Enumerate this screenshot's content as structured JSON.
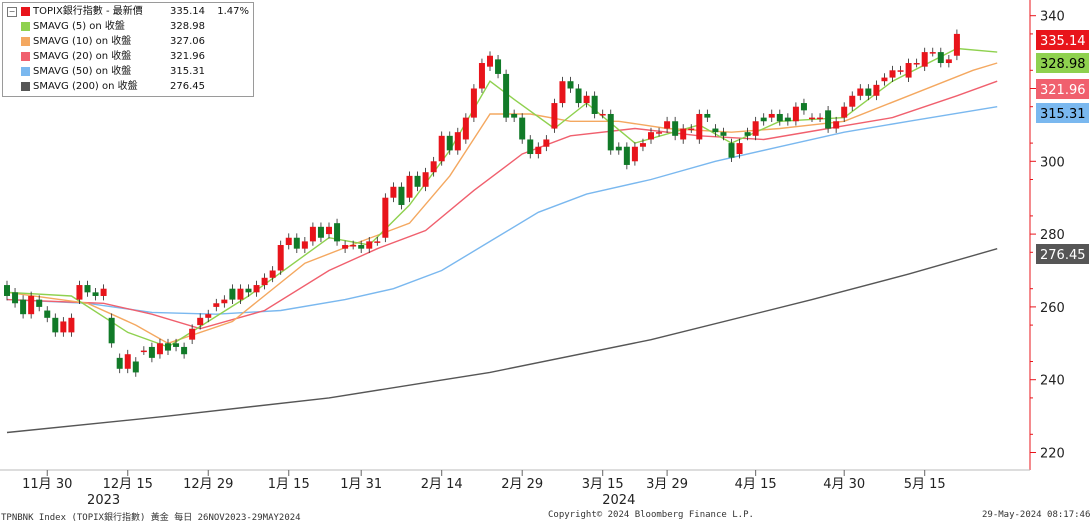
{
  "chart_data": {
    "type": "candlestick",
    "ylim": [
      216,
      346
    ],
    "yticks": [
      220,
      240,
      260,
      280,
      300,
      320,
      340
    ],
    "xticks": [
      {
        "label": "11月 30"
      },
      {
        "label": "12月 15"
      },
      {
        "label": "12月 29"
      },
      {
        "label": "1月 15"
      },
      {
        "label": "1月 31"
      },
      {
        "label": "2月 14"
      },
      {
        "label": "2月 29"
      },
      {
        "label": "3月 15"
      },
      {
        "label": "3月 29"
      },
      {
        "label": "4月 15"
      },
      {
        "label": "4月 30"
      },
      {
        "label": "5月 15"
      }
    ],
    "year_labels": [
      "2023",
      "2024"
    ],
    "candles": [
      [
        266,
        263
      ],
      [
        264,
        261
      ],
      [
        262,
        258
      ],
      [
        258,
        263
      ],
      [
        262,
        260
      ],
      [
        259,
        257
      ],
      [
        257,
        253
      ],
      [
        253,
        256
      ],
      [
        253,
        257
      ],
      [
        262,
        266
      ],
      [
        266,
        264
      ],
      [
        264,
        263
      ],
      [
        263,
        265
      ],
      [
        257,
        250
      ],
      [
        246,
        243
      ],
      [
        243,
        247
      ],
      [
        245,
        242
      ],
      [
        248,
        248
      ],
      [
        249,
        246
      ],
      [
        247,
        250
      ],
      [
        250,
        248
      ],
      [
        250,
        249
      ],
      [
        249,
        247
      ],
      [
        251,
        254
      ],
      [
        255,
        257
      ],
      [
        257,
        258
      ],
      [
        260,
        261
      ],
      [
        261,
        262
      ],
      [
        265,
        262
      ],
      [
        262,
        265
      ],
      [
        265,
        264
      ],
      [
        264,
        266
      ],
      [
        266,
        268
      ],
      [
        268,
        270
      ],
      [
        270,
        277
      ],
      [
        277,
        279
      ],
      [
        279,
        276
      ],
      [
        276,
        278
      ],
      [
        278,
        282
      ],
      [
        282,
        279
      ],
      [
        280,
        282
      ],
      [
        283,
        278
      ],
      [
        276,
        277
      ],
      [
        277,
        277
      ],
      [
        277,
        276
      ],
      [
        276,
        278
      ],
      [
        278,
        278
      ],
      [
        279,
        290
      ],
      [
        290,
        293
      ],
      [
        293,
        288
      ],
      [
        290,
        296
      ],
      [
        296,
        293
      ],
      [
        293,
        297
      ],
      [
        297,
        300
      ],
      [
        300,
        307
      ],
      [
        307,
        303
      ],
      [
        303,
        308
      ],
      [
        306,
        312
      ],
      [
        312,
        320
      ],
      [
        320,
        327
      ],
      [
        326,
        329
      ],
      [
        328,
        324
      ],
      [
        324,
        312
      ],
      [
        313,
        312
      ],
      [
        312,
        306
      ],
      [
        306,
        302
      ],
      [
        302,
        304
      ],
      [
        304,
        306
      ],
      [
        309,
        316
      ],
      [
        316,
        322
      ],
      [
        322,
        320
      ],
      [
        320,
        316
      ],
      [
        316,
        318
      ],
      [
        318,
        313
      ],
      [
        313,
        313
      ],
      [
        313,
        303
      ],
      [
        304,
        303
      ],
      [
        304,
        299
      ],
      [
        300,
        304
      ],
      [
        304,
        305
      ],
      [
        306,
        308
      ],
      [
        308,
        308
      ],
      [
        309,
        311
      ],
      [
        311,
        307
      ],
      [
        306,
        309
      ],
      [
        309,
        309
      ],
      [
        306,
        313
      ],
      [
        313,
        312
      ],
      [
        309,
        308
      ],
      [
        308,
        307
      ],
      [
        305,
        301
      ],
      [
        302,
        305
      ],
      [
        308,
        307
      ],
      [
        307,
        311
      ],
      [
        312,
        311
      ],
      [
        312,
        313
      ],
      [
        313,
        311
      ],
      [
        312,
        311
      ],
      [
        311,
        315
      ],
      [
        316,
        314
      ],
      [
        312,
        312
      ],
      [
        312,
        312
      ],
      [
        314,
        309
      ],
      [
        309,
        311
      ],
      [
        312,
        315
      ],
      [
        315,
        318
      ],
      [
        318,
        320
      ],
      [
        320,
        318
      ],
      [
        318,
        321
      ],
      [
        322,
        323
      ],
      [
        323,
        325
      ],
      [
        325,
        325
      ],
      [
        323,
        327
      ],
      [
        327,
        327
      ],
      [
        326,
        330
      ],
      [
        330,
        330
      ],
      [
        330,
        327
      ],
      [
        327,
        328
      ],
      [
        329,
        335
      ]
    ],
    "series": [
      {
        "name": "TOPIX銀行指數 - 最新價",
        "last": "335.14",
        "change": "1.47%",
        "color": "#e8141b"
      },
      {
        "name": "SMAVG (5)  on 收盤",
        "last": "328.98",
        "color": "#8fd14f",
        "values": [
          [
            0,
            264
          ],
          [
            8,
            263
          ],
          [
            15,
            253
          ],
          [
            20,
            249
          ],
          [
            30,
            263
          ],
          [
            40,
            279
          ],
          [
            45,
            277
          ],
          [
            50,
            288
          ],
          [
            55,
            303
          ],
          [
            60,
            322
          ],
          [
            63,
            317
          ],
          [
            68,
            309
          ],
          [
            72,
            316
          ],
          [
            78,
            305
          ],
          [
            86,
            310
          ],
          [
            90,
            305
          ],
          [
            96,
            311
          ],
          [
            104,
            312
          ],
          [
            110,
            322
          ],
          [
            118,
            331
          ],
          [
            123,
            330
          ]
        ]
      },
      {
        "name": "SMAVG (10)  on 收盤",
        "last": "327.06",
        "color": "#f4a860",
        "values": [
          [
            0,
            264
          ],
          [
            10,
            261
          ],
          [
            16,
            255
          ],
          [
            20,
            250
          ],
          [
            28,
            256
          ],
          [
            37,
            272
          ],
          [
            44,
            278
          ],
          [
            50,
            283
          ],
          [
            55,
            296
          ],
          [
            60,
            313
          ],
          [
            65,
            313
          ],
          [
            70,
            311
          ],
          [
            76,
            311
          ],
          [
            82,
            309
          ],
          [
            90,
            308
          ],
          [
            96,
            309
          ],
          [
            104,
            311
          ],
          [
            112,
            318
          ],
          [
            120,
            325
          ],
          [
            123,
            327
          ]
        ]
      },
      {
        "name": "SMAVG (20)  on 收盤",
        "last": "321.96",
        "color": "#f0606e",
        "values": [
          [
            0,
            262
          ],
          [
            12,
            261
          ],
          [
            18,
            258
          ],
          [
            24,
            254
          ],
          [
            32,
            259
          ],
          [
            40,
            270
          ],
          [
            46,
            276
          ],
          [
            52,
            281
          ],
          [
            58,
            292
          ],
          [
            64,
            302
          ],
          [
            70,
            307
          ],
          [
            78,
            309
          ],
          [
            86,
            307
          ],
          [
            94,
            306
          ],
          [
            102,
            309
          ],
          [
            110,
            312
          ],
          [
            118,
            318
          ],
          [
            123,
            322
          ]
        ]
      },
      {
        "name": "SMAVG (50)  on 收盤",
        "last": "315.31",
        "color": "#7ab8ef",
        "values": [
          [
            0,
            262
          ],
          [
            10,
            261
          ],
          [
            18,
            258.5
          ],
          [
            26,
            258
          ],
          [
            34,
            259
          ],
          [
            42,
            262
          ],
          [
            48,
            265
          ],
          [
            54,
            270
          ],
          [
            60,
            278
          ],
          [
            66,
            286
          ],
          [
            72,
            291
          ],
          [
            80,
            295
          ],
          [
            88,
            300
          ],
          [
            96,
            304
          ],
          [
            104,
            308
          ],
          [
            112,
            311
          ],
          [
            123,
            315
          ]
        ]
      },
      {
        "name": "SMAVG (200)  on 收盤",
        "last": "276.45",
        "color": "#565656",
        "values": [
          [
            0,
            225.5
          ],
          [
            20,
            230
          ],
          [
            40,
            235
          ],
          [
            60,
            242
          ],
          [
            80,
            251
          ],
          [
            100,
            262
          ],
          [
            112,
            269
          ],
          [
            123,
            276
          ]
        ]
      }
    ]
  },
  "price_tags": [
    {
      "value": "335.14",
      "bg": "#e8141b",
      "fg": "#ffffff"
    },
    {
      "value": "328.98",
      "bg": "#8fd14f",
      "fg": "#000000"
    },
    {
      "value": "321.96",
      "bg": "#f0606e",
      "fg": "#ffffff"
    },
    {
      "value": "315.31",
      "bg": "#7ab8ef",
      "fg": "#000000"
    },
    {
      "value": "276.45",
      "bg": "#565656",
      "fg": "#ffffff"
    }
  ],
  "footer": {
    "left": "TPNBNK Index (TOPIX銀行指數) 黃金  每日 26NOV2023-29MAY2024",
    "center": "Copyright© 2024 Bloomberg Finance L.P.",
    "right": "29-May-2024 08:17:46"
  },
  "colors": {
    "up": "#e8141b",
    "down": "#117a28",
    "axis": "#e8141b"
  }
}
